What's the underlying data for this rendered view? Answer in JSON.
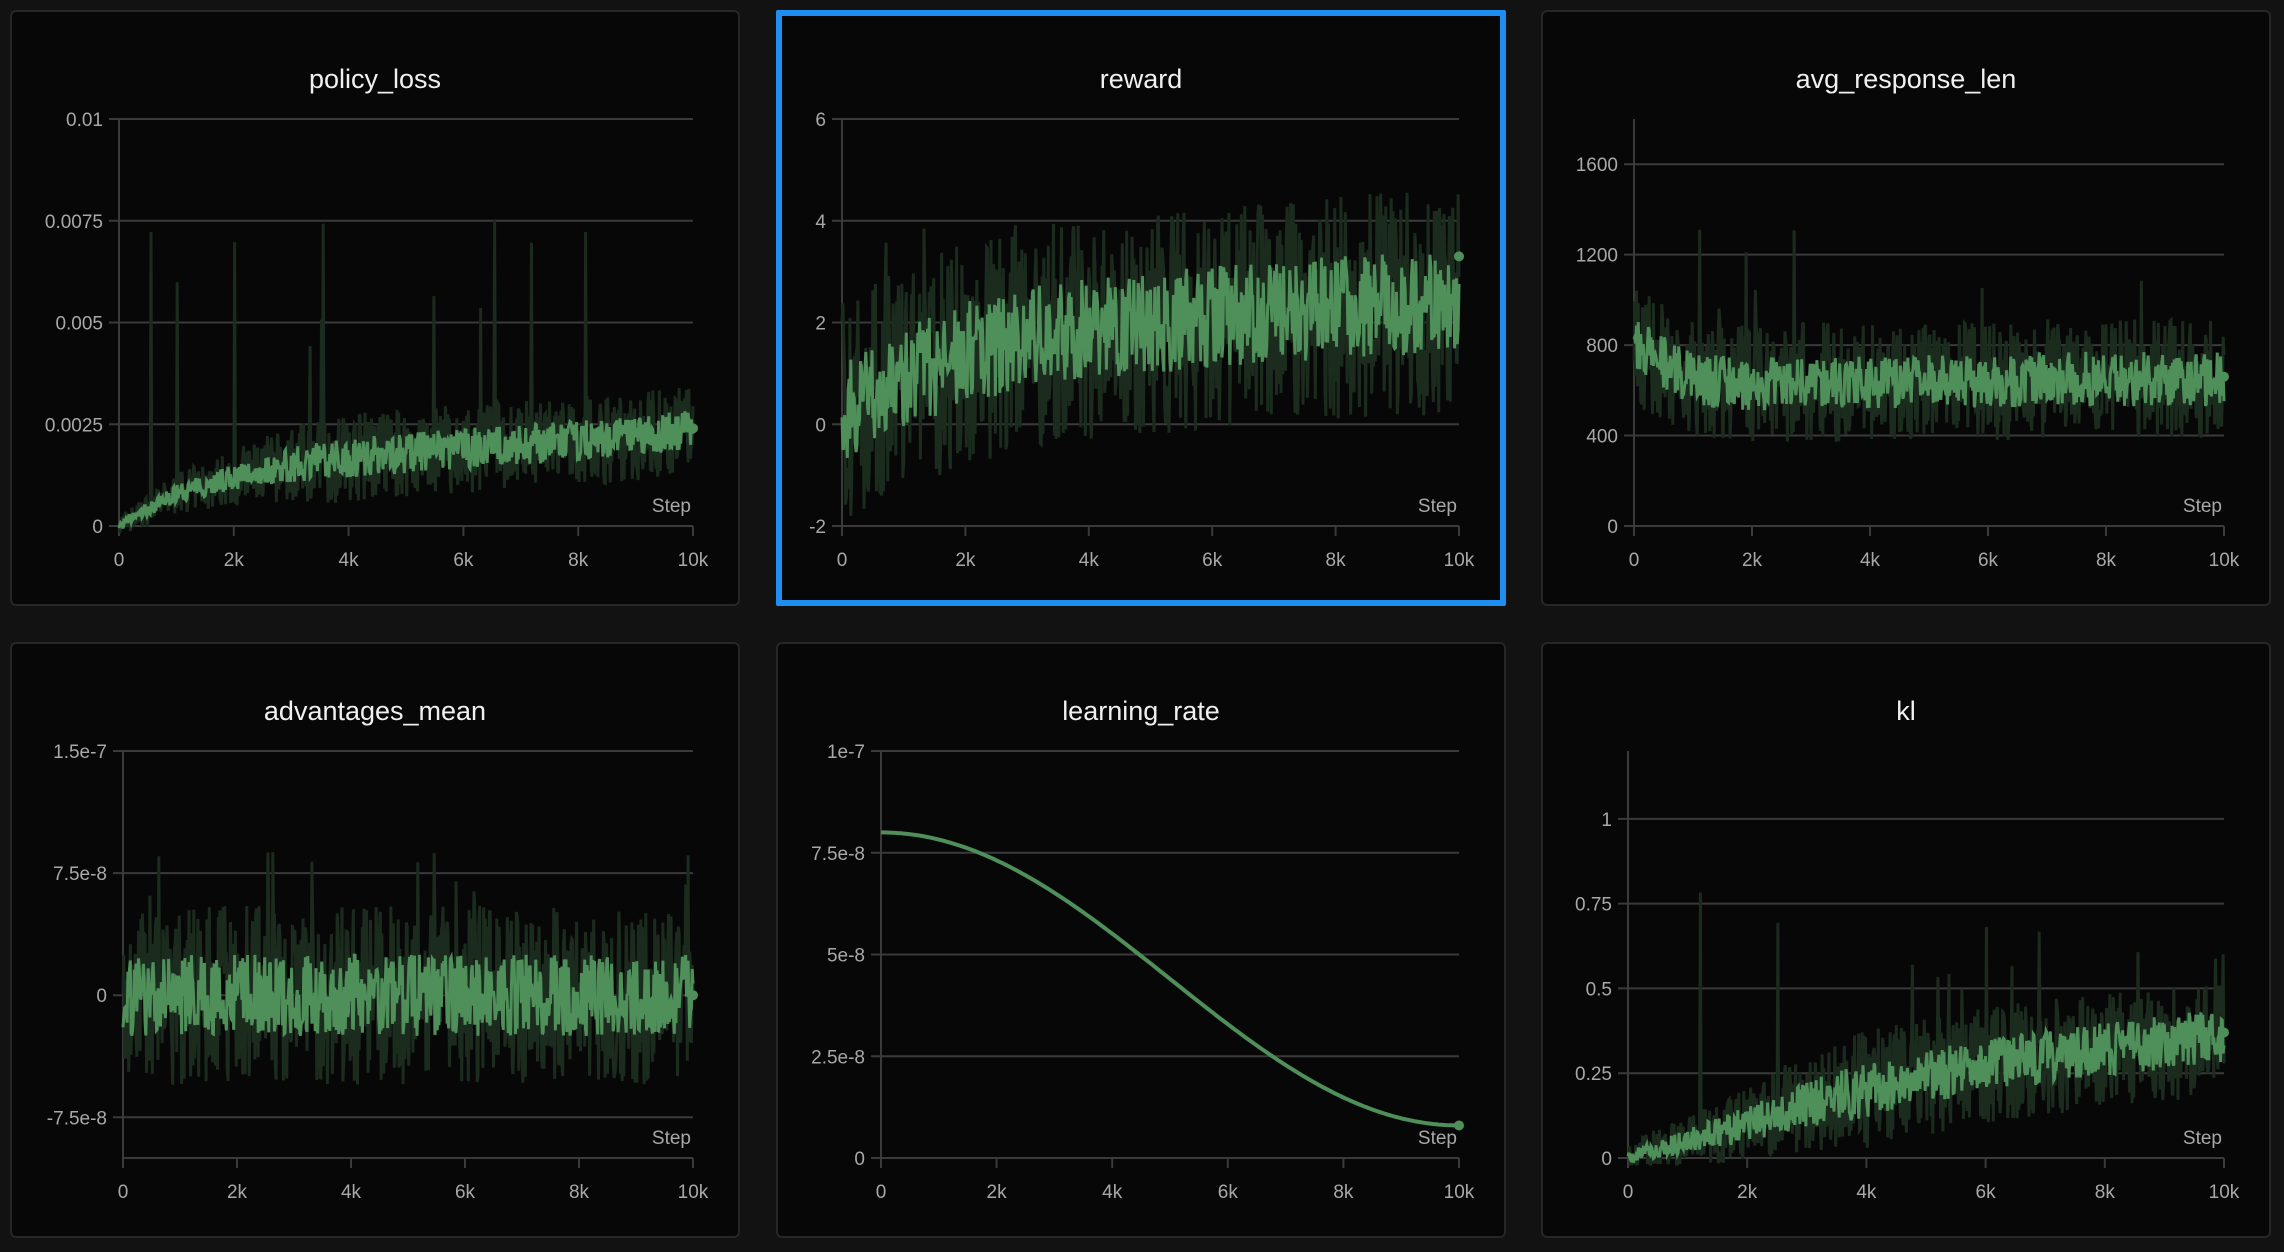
{
  "colors": {
    "background": "#121212",
    "panel": "#070707",
    "selected_border": "#1e8ff0",
    "line": "#4f8f5a",
    "raw": "#1b2b1e",
    "grid": "#3a3a3a",
    "tick_text": "#a8a8a8"
  },
  "x_axis_label": "Step",
  "selected_chart": "reward",
  "chart_data": [
    {
      "type": "line",
      "title": "policy_loss",
      "xlabel": "Step",
      "xlim": [
        0,
        10000
      ],
      "ylim": [
        0,
        0.01
      ],
      "grid": true,
      "x_ticks": [
        "0",
        "2k",
        "4k",
        "6k",
        "8k",
        "10k"
      ],
      "y_ticks": [
        {
          "v": 0,
          "label": "0"
        },
        {
          "v": 0.0025,
          "label": "0.0025"
        },
        {
          "v": 0.005,
          "label": "0.005"
        },
        {
          "v": 0.0075,
          "label": "0.0075"
        },
        {
          "v": 0.01,
          "label": "0.01"
        }
      ],
      "x": [
        0,
        1000,
        2000,
        3000,
        4000,
        5000,
        6000,
        7000,
        8000,
        9000,
        10000
      ],
      "smoothed": [
        0,
        0.0008,
        0.0012,
        0.0015,
        0.0017,
        0.0018,
        0.0019,
        0.002,
        0.0021,
        0.0022,
        0.0024
      ],
      "raw_spread": 0.0005,
      "raw_max": 0.0076,
      "last_value": 0.0024
    },
    {
      "type": "line",
      "title": "reward",
      "xlabel": "Step",
      "xlim": [
        0,
        10000
      ],
      "ylim": [
        -2,
        6
      ],
      "grid": true,
      "x_ticks": [
        "0",
        "2k",
        "4k",
        "6k",
        "8k",
        "10k"
      ],
      "y_ticks": [
        {
          "v": -2,
          "label": "-2"
        },
        {
          "v": 0,
          "label": "0"
        },
        {
          "v": 2,
          "label": "2"
        },
        {
          "v": 4,
          "label": "4"
        },
        {
          "v": 6,
          "label": "6"
        }
      ],
      "x": [
        0,
        1000,
        2000,
        3000,
        4000,
        5000,
        6000,
        7000,
        8000,
        9000,
        10000
      ],
      "smoothed": [
        0.2,
        0.9,
        1.4,
        1.7,
        1.9,
        2.0,
        2.1,
        2.2,
        2.3,
        2.35,
        2.4
      ],
      "raw_spread": 1.0,
      "raw_max": 4.0,
      "last_value": 3.3
    },
    {
      "type": "line",
      "title": "avg_response_len",
      "xlabel": "Step",
      "xlim": [
        0,
        10000
      ],
      "ylim": [
        0,
        1800
      ],
      "grid": true,
      "x_ticks": [
        "0",
        "2k",
        "4k",
        "6k",
        "8k",
        "10k"
      ],
      "y_ticks": [
        {
          "v": 0,
          "label": "0"
        },
        {
          "v": 400,
          "label": "400"
        },
        {
          "v": 800,
          "label": "800"
        },
        {
          "v": 1200,
          "label": "1200"
        },
        {
          "v": 1600,
          "label": "1600"
        }
      ],
      "x": [
        0,
        1000,
        2000,
        3000,
        4000,
        5000,
        6000,
        7000,
        8000,
        9000,
        10000
      ],
      "smoothed": [
        800,
        640,
        630,
        640,
        630,
        640,
        640,
        650,
        650,
        650,
        650
      ],
      "raw_spread": 120,
      "raw_max": 1430,
      "last_value": 660
    },
    {
      "type": "line",
      "title": "advantages_mean",
      "xlabel": "Step",
      "xlim": [
        0,
        10000
      ],
      "ylim": [
        -1e-07,
        1.5e-07
      ],
      "grid": true,
      "x_ticks": [
        "0",
        "2k",
        "4k",
        "6k",
        "8k",
        "10k"
      ],
      "y_ticks": [
        {
          "v": -7.5e-08,
          "label": "-7.5e-8"
        },
        {
          "v": 0,
          "label": "0"
        },
        {
          "v": 7.5e-08,
          "label": "7.5e-8"
        },
        {
          "v": 1.5e-07,
          "label": "1.5e-7"
        }
      ],
      "x": [
        0,
        1000,
        2000,
        3000,
        4000,
        5000,
        6000,
        7000,
        8000,
        9000,
        10000
      ],
      "smoothed": [
        0,
        0,
        0,
        0,
        0,
        0,
        0,
        0,
        0,
        0,
        0
      ],
      "raw_spread": 2.5e-08,
      "raw_max": 9e-08,
      "last_value": 0
    },
    {
      "type": "line",
      "title": "learning_rate",
      "xlabel": "Step",
      "xlim": [
        0,
        10000
      ],
      "ylim": [
        0,
        1e-07
      ],
      "grid": true,
      "x_ticks": [
        "0",
        "2k",
        "4k",
        "6k",
        "8k",
        "10k"
      ],
      "y_ticks": [
        {
          "v": 0,
          "label": "0"
        },
        {
          "v": 2.5e-08,
          "label": "2.5e-8"
        },
        {
          "v": 5e-08,
          "label": "5e-8"
        },
        {
          "v": 7.5e-08,
          "label": "7.5e-8"
        },
        {
          "v": 1e-07,
          "label": "1e-7"
        }
      ],
      "x": [
        0,
        1000,
        2000,
        3000,
        4000,
        5000,
        6000,
        7000,
        8000,
        9000,
        10000
      ],
      "smoothed": [
        8e-08,
        7.83e-08,
        7.34e-08,
        6.58e-08,
        5.63e-08,
        4.6e-08,
        3.57e-08,
        2.62e-08,
        1.86e-08,
        1.37e-08,
        8e-09
      ],
      "raw_spread": 0,
      "raw_max": 8e-08,
      "last_value": 8e-09
    },
    {
      "type": "line",
      "title": "kl",
      "xlabel": "Step",
      "xlim": [
        0,
        10000
      ],
      "ylim": [
        0,
        1.2
      ],
      "grid": true,
      "x_ticks": [
        "0",
        "2k",
        "4k",
        "6k",
        "8k",
        "10k"
      ],
      "y_ticks": [
        {
          "v": 0,
          "label": "0"
        },
        {
          "v": 0.25,
          "label": "0.25"
        },
        {
          "v": 0.5,
          "label": "0.5"
        },
        {
          "v": 0.75,
          "label": "0.75"
        },
        {
          "v": 1,
          "label": "1"
        }
      ],
      "x": [
        0,
        1000,
        2000,
        3000,
        4000,
        5000,
        6000,
        7000,
        8000,
        9000,
        10000
      ],
      "smoothed": [
        0,
        0.05,
        0.1,
        0.16,
        0.2,
        0.24,
        0.27,
        0.3,
        0.32,
        0.34,
        0.36
      ],
      "raw_spread": 0.08,
      "raw_max": 0.82,
      "last_value": 0.37
    }
  ]
}
